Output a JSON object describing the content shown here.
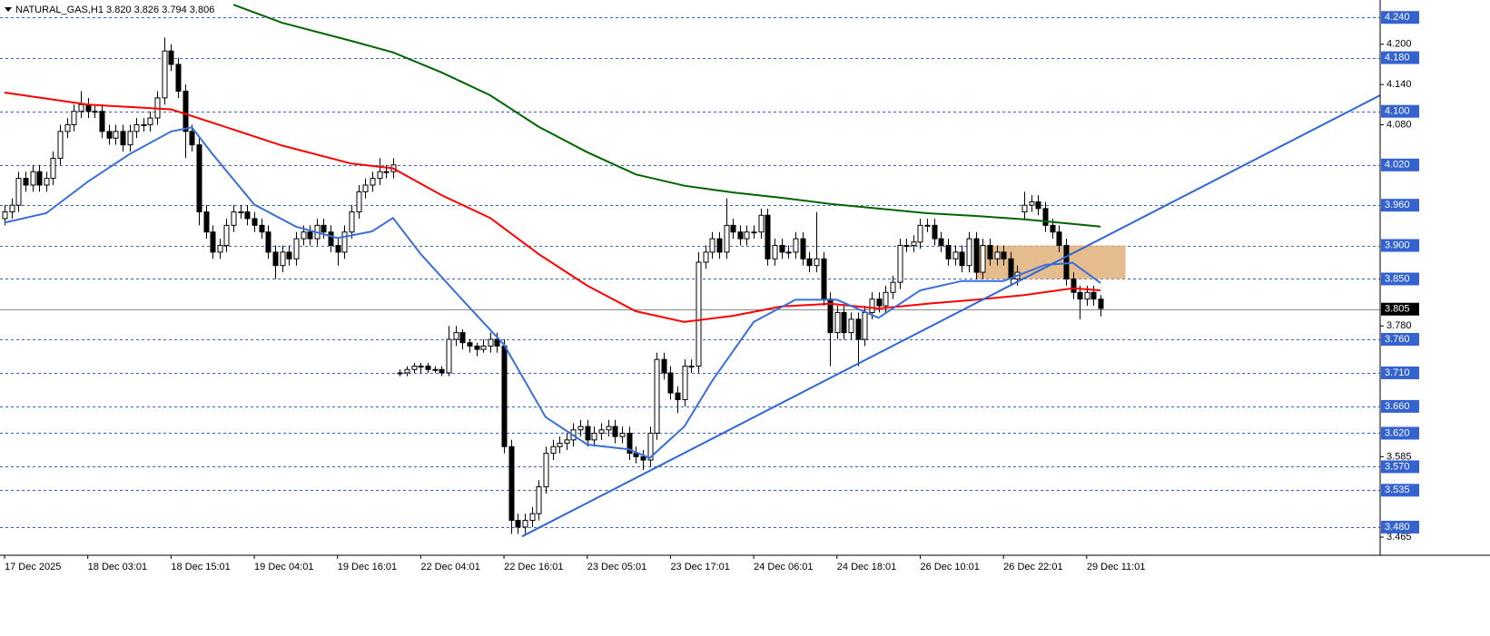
{
  "chart_data": {
    "type": "candlestick",
    "title": "NATURAL_GAS,H1  3.820 3.826 3.794 3.806",
    "categories": [
      "17 Dec 2025",
      null,
      null,
      null,
      null,
      null,
      null,
      null,
      null,
      null,
      null,
      null,
      "18 Dec 03:01",
      null,
      null,
      null,
      null,
      null,
      null,
      null,
      null,
      null,
      null,
      null,
      "18 Dec 15:01",
      null,
      null,
      null,
      null,
      null,
      null,
      null,
      null,
      null,
      null,
      null,
      "19 Dec 04:01",
      null,
      null,
      null,
      null,
      null,
      null,
      null,
      null,
      null,
      null,
      null,
      "19 Dec 16:01",
      null,
      null,
      null,
      null,
      null,
      null,
      null,
      null,
      null,
      null,
      null,
      "22 Dec 04:01",
      null,
      null,
      null,
      null,
      null,
      null,
      null,
      null,
      null,
      null,
      null,
      "22 Dec 16:01",
      null,
      null,
      null,
      null,
      null,
      null,
      null,
      null,
      null,
      null,
      null,
      "23 Dec 05:01",
      null,
      null,
      null,
      null,
      null,
      null,
      null,
      null,
      null,
      null,
      null,
      "23 Dec 17:01",
      null,
      null,
      null,
      null,
      null,
      null,
      null,
      null,
      null,
      null,
      null,
      "24 Dec 06:01",
      null,
      null,
      null,
      null,
      null,
      null,
      null,
      null,
      null,
      null,
      null,
      "24 Dec 18:01",
      null,
      null,
      null,
      null,
      null,
      null,
      null,
      null,
      null,
      null,
      null,
      "26 Dec 10:01",
      null,
      null,
      null,
      null,
      null,
      null,
      null,
      null,
      null,
      null,
      null,
      "26 Dec 22:01",
      null,
      null,
      null,
      null,
      null,
      null,
      null,
      null,
      null,
      null,
      null,
      "29 Dec 11:01",
      null,
      null
    ],
    "open": [
      3.94,
      3.95,
      3.96,
      4.0,
      3.99,
      4.01,
      3.99,
      4.0,
      4.03,
      4.07,
      4.08,
      4.1,
      4.11,
      4.1,
      4.1,
      4.07,
      4.06,
      4.07,
      4.05,
      4.07,
      4.08,
      4.08,
      4.09,
      4.12,
      4.19,
      4.17,
      4.13,
      4.07,
      4.05,
      3.95,
      3.92,
      3.89,
      3.9,
      3.93,
      3.95,
      3.95,
      3.94,
      3.93,
      3.92,
      3.89,
      3.87,
      3.89,
      3.88,
      3.91,
      3.92,
      3.91,
      3.93,
      3.92,
      3.9,
      3.89,
      3.92,
      3.95,
      3.98,
      3.99,
      4.0,
      4.01,
      4.01,
      3.71,
      3.71,
      3.715,
      3.72,
      3.72,
      3.715,
      3.715,
      3.71,
      3.76,
      3.77,
      3.755,
      3.75,
      3.745,
      3.75,
      3.76,
      3.75,
      3.6,
      3.49,
      3.48,
      3.49,
      3.5,
      3.54,
      3.59,
      3.6,
      3.605,
      3.61,
      3.625,
      3.63,
      3.61,
      3.62,
      3.625,
      3.63,
      3.615,
      3.62,
      3.59,
      3.585,
      3.58,
      3.62,
      3.73,
      3.71,
      3.68,
      3.67,
      3.72,
      3.72,
      3.875,
      3.89,
      3.91,
      3.89,
      3.93,
      3.92,
      3.91,
      3.92,
      3.92,
      3.945,
      3.88,
      3.9,
      3.89,
      3.89,
      3.91,
      3.88,
      3.87,
      3.88,
      3.82,
      3.77,
      3.8,
      3.77,
      3.79,
      3.76,
      3.8,
      3.82,
      3.81,
      3.83,
      3.845,
      3.9,
      3.9,
      3.905,
      3.93,
      3.93,
      3.91,
      3.9,
      3.88,
      3.89,
      3.87,
      3.91,
      3.86,
      3.9,
      3.88,
      3.89,
      3.88,
      3.85,
      3.95,
      3.96,
      3.965,
      3.955,
      3.93,
      3.92,
      3.9,
      3.85,
      3.83,
      3.82,
      3.83,
      3.82
    ],
    "high": [
      3.96,
      3.97,
      4.01,
      4.01,
      4.02,
      4.02,
      4.01,
      4.04,
      4.08,
      4.09,
      4.11,
      4.13,
      4.12,
      4.11,
      4.11,
      4.08,
      4.08,
      4.08,
      4.08,
      4.09,
      4.09,
      4.1,
      4.13,
      4.21,
      4.2,
      4.18,
      4.14,
      4.08,
      4.06,
      3.96,
      3.93,
      3.91,
      3.94,
      3.96,
      3.96,
      3.96,
      3.95,
      3.94,
      3.93,
      3.9,
      3.9,
      3.9,
      3.92,
      3.93,
      3.93,
      3.94,
      3.94,
      3.93,
      3.91,
      3.93,
      3.96,
      3.99,
      4.0,
      4.01,
      4.03,
      4.02,
      4.03,
      3.715,
      3.72,
      3.725,
      3.725,
      3.725,
      3.72,
      3.72,
      3.78,
      3.78,
      3.775,
      3.76,
      3.755,
      3.76,
      3.77,
      3.77,
      3.76,
      3.61,
      3.5,
      3.5,
      3.51,
      3.55,
      3.6,
      3.61,
      3.615,
      3.62,
      3.635,
      3.64,
      3.64,
      3.63,
      3.635,
      3.64,
      3.64,
      3.63,
      3.63,
      3.6,
      3.595,
      3.63,
      3.74,
      3.74,
      3.72,
      3.69,
      3.73,
      3.73,
      3.89,
      3.9,
      3.92,
      3.92,
      3.97,
      3.94,
      3.93,
      3.93,
      3.93,
      3.955,
      3.955,
      3.91,
      3.91,
      3.9,
      3.92,
      3.92,
      3.89,
      3.95,
      3.89,
      3.83,
      3.81,
      3.81,
      3.8,
      3.8,
      3.81,
      3.83,
      3.83,
      3.84,
      3.855,
      3.91,
      3.91,
      3.915,
      3.94,
      3.94,
      3.94,
      3.92,
      3.91,
      3.9,
      3.9,
      3.92,
      3.92,
      3.91,
      3.91,
      3.9,
      3.9,
      3.89,
      3.87,
      3.98,
      3.975,
      3.975,
      3.965,
      3.94,
      3.93,
      3.91,
      3.86,
      3.84,
      3.84,
      3.84,
      3.826
    ],
    "low": [
      3.93,
      3.94,
      3.95,
      3.98,
      3.98,
      3.98,
      3.98,
      3.99,
      4.02,
      4.06,
      4.07,
      4.09,
      4.09,
      4.09,
      4.06,
      4.05,
      4.05,
      4.04,
      4.04,
      4.06,
      4.07,
      4.07,
      4.08,
      4.11,
      4.16,
      4.12,
      4.03,
      4.04,
      3.93,
      3.91,
      3.88,
      3.88,
      3.89,
      3.92,
      3.94,
      3.93,
      3.92,
      3.91,
      3.88,
      3.85,
      3.86,
      3.87,
      3.87,
      3.9,
      3.9,
      3.9,
      3.91,
      3.89,
      3.87,
      3.88,
      3.91,
      3.94,
      3.97,
      3.98,
      3.99,
      4.0,
      4.0,
      3.705,
      3.705,
      3.71,
      3.71,
      3.71,
      3.71,
      3.705,
      3.705,
      3.75,
      3.745,
      3.74,
      3.735,
      3.74,
      3.74,
      3.74,
      3.59,
      3.47,
      3.47,
      3.47,
      3.48,
      3.49,
      3.53,
      3.58,
      3.59,
      3.595,
      3.6,
      3.615,
      3.6,
      3.6,
      3.61,
      3.615,
      3.605,
      3.605,
      3.58,
      3.575,
      3.565,
      3.57,
      3.61,
      3.7,
      3.67,
      3.65,
      3.66,
      3.71,
      3.71,
      3.865,
      3.88,
      3.88,
      3.88,
      3.91,
      3.9,
      3.9,
      3.91,
      3.91,
      3.87,
      3.87,
      3.88,
      3.88,
      3.88,
      3.87,
      3.86,
      3.86,
      3.81,
      3.72,
      3.76,
      3.76,
      3.76,
      3.72,
      3.75,
      3.79,
      3.8,
      3.8,
      3.82,
      3.835,
      3.89,
      3.89,
      3.895,
      3.92,
      3.9,
      3.89,
      3.87,
      3.87,
      3.86,
      3.86,
      3.85,
      3.85,
      3.87,
      3.87,
      3.87,
      3.84,
      3.84,
      3.94,
      3.95,
      3.945,
      3.92,
      3.91,
      3.89,
      3.84,
      3.82,
      3.79,
      3.81,
      3.81,
      3.794
    ],
    "close": [
      3.95,
      3.96,
      4.0,
      3.99,
      4.01,
      3.99,
      4.0,
      4.03,
      4.07,
      4.08,
      4.1,
      4.11,
      4.1,
      4.1,
      4.07,
      4.06,
      4.07,
      4.05,
      4.07,
      4.08,
      4.08,
      4.09,
      4.12,
      4.19,
      4.17,
      4.13,
      4.07,
      4.05,
      3.95,
      3.92,
      3.89,
      3.9,
      3.93,
      3.95,
      3.95,
      3.94,
      3.93,
      3.92,
      3.89,
      3.87,
      3.89,
      3.88,
      3.91,
      3.92,
      3.91,
      3.93,
      3.92,
      3.9,
      3.89,
      3.92,
      3.95,
      3.98,
      3.99,
      4.0,
      4.01,
      4.01,
      4.02,
      3.71,
      3.715,
      3.72,
      3.72,
      3.715,
      3.715,
      3.71,
      3.76,
      3.77,
      3.755,
      3.75,
      3.745,
      3.75,
      3.76,
      3.75,
      3.6,
      3.49,
      3.48,
      3.49,
      3.5,
      3.54,
      3.59,
      3.6,
      3.605,
      3.61,
      3.625,
      3.63,
      3.61,
      3.62,
      3.625,
      3.63,
      3.615,
      3.62,
      3.59,
      3.585,
      3.58,
      3.62,
      3.73,
      3.71,
      3.68,
      3.67,
      3.72,
      3.72,
      3.875,
      3.89,
      3.91,
      3.89,
      3.93,
      3.92,
      3.91,
      3.92,
      3.92,
      3.945,
      3.88,
      3.9,
      3.89,
      3.89,
      3.91,
      3.88,
      3.87,
      3.88,
      3.82,
      3.77,
      3.8,
      3.77,
      3.79,
      3.76,
      3.8,
      3.82,
      3.81,
      3.83,
      3.845,
      3.9,
      3.9,
      3.905,
      3.93,
      3.93,
      3.91,
      3.9,
      3.88,
      3.89,
      3.87,
      3.91,
      3.86,
      3.9,
      3.88,
      3.89,
      3.88,
      3.85,
      3.86,
      3.96,
      3.965,
      3.955,
      3.93,
      3.92,
      3.9,
      3.85,
      3.83,
      3.82,
      3.83,
      3.82,
      3.806
    ],
    "up_color": "#ffffff",
    "down_color": "#000000",
    "lines": [
      {
        "color": "#006400",
        "x": [
          33,
          40,
          50,
          56,
          63,
          70,
          77,
          84,
          91,
          98,
          105,
          112,
          119,
          126,
          133,
          140,
          147,
          158
        ],
        "values": [
          4.259,
          4.232,
          4.205,
          4.188,
          4.158,
          4.124,
          4.077,
          4.039,
          4.006,
          3.989,
          3.979,
          3.971,
          3.962,
          3.955,
          3.948,
          3.944,
          3.939,
          3.928
        ]
      },
      {
        "color": "#ff0000",
        "x": [
          0,
          12,
          24,
          30,
          40,
          50,
          56,
          63,
          70,
          77,
          84,
          91,
          98,
          105,
          112,
          119,
          126,
          133,
          140,
          147,
          154,
          158
        ],
        "values": [
          4.128,
          4.11,
          4.103,
          4.083,
          4.049,
          4.022,
          4.015,
          3.975,
          3.941,
          3.887,
          3.84,
          3.802,
          3.786,
          3.795,
          3.809,
          3.813,
          3.806,
          3.813,
          3.819,
          3.826,
          3.836,
          3.833
        ]
      },
      {
        "color": "#3a6fd8",
        "x": [
          0,
          6,
          12,
          18,
          24,
          27,
          30,
          36,
          42,
          48,
          53,
          56,
          60,
          66,
          72,
          78,
          84,
          90,
          93,
          98,
          102,
          108,
          114,
          120,
          126,
          132,
          138,
          144,
          150,
          154,
          158
        ],
        "values": [
          3.934,
          3.948,
          3.995,
          4.036,
          4.07,
          4.076,
          4.036,
          3.961,
          3.928,
          3.911,
          3.921,
          3.941,
          3.887,
          3.819,
          3.752,
          3.644,
          3.603,
          3.596,
          3.583,
          3.63,
          3.698,
          3.786,
          3.819,
          3.819,
          3.792,
          3.833,
          3.847,
          3.847,
          3.871,
          3.874,
          3.844
        ]
      }
    ],
    "trendline": {
      "color": "#2f66d6",
      "x": [
        74.6,
        198.3
      ],
      "values": [
        3.466,
        4.124
      ]
    },
    "zone": {
      "color": "#e0b07a",
      "x": [
        140,
        161.6
      ],
      "values": [
        3.85,
        3.9
      ]
    },
    "levels": [
      {
        "value": 4.24,
        "label": "4.240"
      },
      {
        "value": 4.18,
        "label": "4.180"
      },
      {
        "value": 4.1,
        "label": "4.100"
      },
      {
        "value": 4.02,
        "label": "4.020"
      },
      {
        "value": 3.96,
        "label": "3.960"
      },
      {
        "value": 3.9,
        "label": "3.900"
      },
      {
        "value": 3.85,
        "label": "3.850"
      },
      {
        "value": 3.76,
        "label": "3.760"
      },
      {
        "value": 3.71,
        "label": "3.710"
      },
      {
        "value": 3.66,
        "label": "3.660"
      },
      {
        "value": 3.62,
        "label": "3.620"
      },
      {
        "value": 3.57,
        "label": "3.570"
      },
      {
        "value": 3.535,
        "label": "3.535"
      },
      {
        "value": 3.48,
        "label": "3.480"
      }
    ],
    "level_color": "#3462d0",
    "current_price": {
      "value": 3.805,
      "label": "3.805"
    },
    "ylim": [
      3.438,
      4.266
    ],
    "yticks": [
      {
        "value": 4.2,
        "label": "4.200"
      },
      {
        "value": 4.14,
        "label": "4.140"
      },
      {
        "value": 4.08,
        "label": "4.080"
      },
      {
        "value": 3.78,
        "label": "3.780"
      },
      {
        "value": 3.585,
        "label": "3.585"
      },
      {
        "value": 3.465,
        "label": "3.465"
      }
    ]
  }
}
